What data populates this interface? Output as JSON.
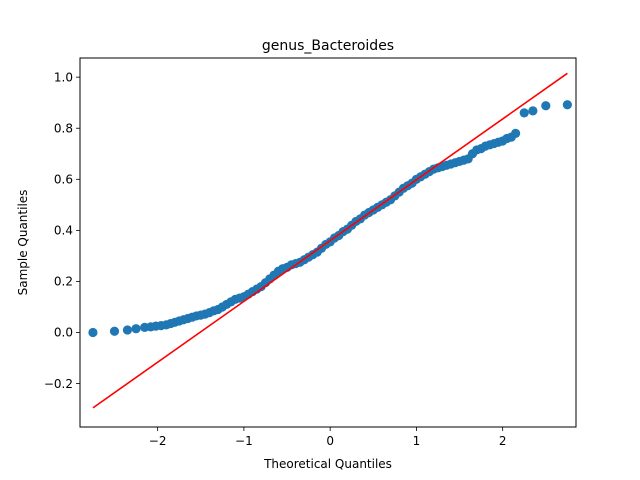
{
  "chart_data": {
    "type": "scatter",
    "title": "genus_Bacteroides",
    "xlabel": "Theoretical Quantiles",
    "ylabel": "Sample Quantiles",
    "xlim": [
      -2.9,
      2.85
    ],
    "ylim": [
      -0.37,
      1.075
    ],
    "xticks": [
      -2,
      -1,
      0,
      1,
      2
    ],
    "xtick_labels": [
      "−2",
      "−1",
      "0",
      "1",
      "2"
    ],
    "yticks": [
      -0.2,
      0.0,
      0.2,
      0.4,
      0.6,
      0.8,
      1.0
    ],
    "ytick_labels": [
      "−0.2",
      "0.0",
      "0.2",
      "0.4",
      "0.6",
      "0.8",
      "1.0"
    ],
    "grid": false,
    "legend": "none",
    "colors": {
      "points": "#1f77b4",
      "reference_line": "#ff0000"
    },
    "reference_line": {
      "x": [
        -2.75,
        2.75
      ],
      "y": [
        -0.295,
        1.015
      ]
    },
    "points": {
      "x": [
        -2.75,
        -2.5,
        -2.35,
        -2.25,
        -2.15,
        -2.08,
        -2.02,
        -1.96,
        -1.9,
        -1.85,
        -1.8,
        -1.75,
        -1.7,
        -1.65,
        -1.6,
        -1.55,
        -1.5,
        -1.45,
        -1.4,
        -1.35,
        -1.3,
        -1.25,
        -1.2,
        -1.15,
        -1.1,
        -1.05,
        -1.0,
        -0.95,
        -0.9,
        -0.85,
        -0.8,
        -0.75,
        -0.7,
        -0.65,
        -0.6,
        -0.55,
        -0.5,
        -0.45,
        -0.4,
        -0.35,
        -0.3,
        -0.25,
        -0.2,
        -0.15,
        -0.1,
        -0.05,
        0.0,
        0.05,
        0.1,
        0.15,
        0.2,
        0.25,
        0.3,
        0.35,
        0.4,
        0.45,
        0.5,
        0.55,
        0.6,
        0.65,
        0.7,
        0.75,
        0.8,
        0.85,
        0.9,
        0.95,
        1.0,
        1.05,
        1.1,
        1.15,
        1.2,
        1.25,
        1.3,
        1.35,
        1.4,
        1.45,
        1.5,
        1.55,
        1.6,
        1.65,
        1.7,
        1.75,
        1.8,
        1.85,
        1.9,
        1.95,
        2.0,
        2.05,
        2.1,
        2.15,
        2.25,
        2.35,
        2.5,
        2.75
      ],
      "y": [
        0.0,
        0.005,
        0.01,
        0.015,
        0.02,
        0.022,
        0.025,
        0.027,
        0.03,
        0.035,
        0.04,
        0.045,
        0.05,
        0.055,
        0.06,
        0.065,
        0.068,
        0.072,
        0.078,
        0.085,
        0.09,
        0.1,
        0.11,
        0.12,
        0.13,
        0.135,
        0.14,
        0.15,
        0.16,
        0.17,
        0.18,
        0.195,
        0.21,
        0.225,
        0.24,
        0.25,
        0.255,
        0.265,
        0.27,
        0.275,
        0.285,
        0.295,
        0.305,
        0.315,
        0.33,
        0.345,
        0.355,
        0.37,
        0.38,
        0.395,
        0.405,
        0.42,
        0.435,
        0.445,
        0.46,
        0.47,
        0.48,
        0.49,
        0.5,
        0.51,
        0.52,
        0.535,
        0.55,
        0.565,
        0.575,
        0.585,
        0.6,
        0.61,
        0.62,
        0.63,
        0.64,
        0.645,
        0.65,
        0.655,
        0.66,
        0.665,
        0.67,
        0.675,
        0.68,
        0.7,
        0.715,
        0.72,
        0.73,
        0.735,
        0.74,
        0.745,
        0.75,
        0.76,
        0.765,
        0.78,
        0.86,
        0.868,
        0.888,
        0.892
      ]
    }
  }
}
